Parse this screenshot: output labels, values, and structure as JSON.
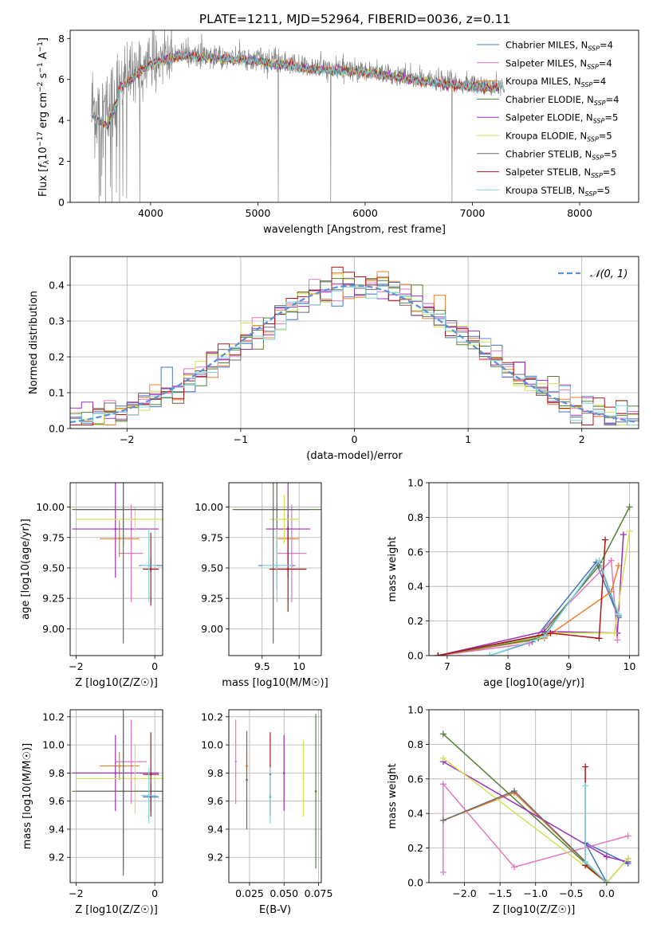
{
  "figure": {
    "title": "PLATE=1211, MJD=52964, FIBERID=0036, z=0.11"
  },
  "models": [
    {
      "label": "Chabrier MILES, N",
      "sub": "SSP",
      "suffix": "=4",
      "color": "#4472c4"
    },
    {
      "label": "Salpeter MILES, N",
      "sub": "SSP",
      "suffix": "=4",
      "color": "#e377c2"
    },
    {
      "label": "Kroupa MILES, N",
      "sub": "SSP",
      "suffix": "=4",
      "color": "#ed7d31"
    },
    {
      "label": "Chabrier ELODIE, N",
      "sub": "SSP",
      "suffix": "=4",
      "color": "#548235"
    },
    {
      "label": "Salpeter ELODIE, N",
      "sub": "SSP",
      "suffix": "=5",
      "color": "#9b30b8"
    },
    {
      "label": "Kroupa ELODIE, N",
      "sub": "SSP",
      "suffix": "=5",
      "color": "#d4e157"
    },
    {
      "label": "Chabrier STELIB, N",
      "sub": "SSP",
      "suffix": "=5",
      "color": "#6b6b6b"
    },
    {
      "label": "Salpeter STELIB, N",
      "sub": "SSP",
      "suffix": "=5",
      "color": "#b01818"
    },
    {
      "label": "Kroupa STELIB, N",
      "sub": "SSP",
      "suffix": "=5",
      "color": "#7fd6df"
    }
  ],
  "chart_data": [
    {
      "id": "spectrum",
      "type": "line",
      "xlabel": "wavelength [Angstrom, rest frame]",
      "ylabel_parts": [
        "Flux [",
        "f",
        "λ",
        "10",
        "−17",
        " erg cm",
        "−2",
        " s",
        "−1",
        " A",
        "−1",
        "]"
      ],
      "xlim": [
        3250,
        8550
      ],
      "ylim": [
        0,
        8.4
      ],
      "xticks": [
        4000,
        5000,
        6000,
        7000,
        8000
      ],
      "yticks": [
        0,
        2,
        4,
        6,
        8
      ],
      "continuum": [
        [
          3450,
          4.7
        ],
        [
          3600,
          4.3
        ],
        [
          3700,
          5.6
        ],
        [
          3850,
          6.3
        ],
        [
          4000,
          6.9
        ],
        [
          4300,
          7.25
        ],
        [
          4600,
          7.15
        ],
        [
          5000,
          7.0
        ],
        [
          5500,
          6.6
        ],
        [
          6000,
          6.45
        ],
        [
          6500,
          6.05
        ],
        [
          7000,
          5.75
        ],
        [
          7300,
          5.7
        ]
      ],
      "dips": [
        3520,
        3580,
        3640,
        3710,
        3900,
        5190,
        5680,
        6810,
        7420
      ]
    },
    {
      "id": "residuals",
      "type": "line",
      "xlabel": "(data-model)/error",
      "ylabel": "Normed distribution",
      "xlim": [
        -2.5,
        2.5
      ],
      "ylim": [
        0,
        0.48
      ],
      "xticks": [
        -2,
        -1,
        0,
        1,
        2
      ],
      "yticks": [
        0.0,
        0.1,
        0.2,
        0.3,
        0.4
      ],
      "grid": true,
      "legend": "N(0,1)",
      "gaussian_color": "#5b8fd6"
    },
    {
      "id": "age-vs-Z",
      "type": "scatter",
      "xlabel": "Z [log10(Z/Z☉)]",
      "ylabel": "age  [log10(age/yr)]",
      "xlim": [
        -2.15,
        0.2
      ],
      "ylim": [
        8.78,
        10.2
      ],
      "xticks": [
        -2,
        0
      ],
      "yticks": [
        9.0,
        9.25,
        9.5,
        9.75,
        10.0
      ],
      "grid": true
    },
    {
      "id": "age-vs-mass",
      "type": "scatter",
      "xlabel": "mass [log10(M/M☉)]",
      "ylabel": "",
      "xlim": [
        9.05,
        10.3
      ],
      "ylim": [
        8.78,
        10.2
      ],
      "xticks": [
        9.5,
        10.0
      ],
      "yticks": [
        9.0,
        9.25,
        9.5,
        9.75,
        10.0
      ],
      "grid": true
    },
    {
      "id": "weight-vs-age",
      "type": "line",
      "xlabel": "age  [log10(age/yr)]",
      "ylabel": "mass weight",
      "xlim": [
        6.7,
        10.15
      ],
      "ylim": [
        0,
        1.0
      ],
      "xticks": [
        7,
        8,
        9,
        10
      ],
      "yticks": [
        0.0,
        0.2,
        0.4,
        0.6,
        0.8,
        1.0
      ],
      "grid": true
    },
    {
      "id": "mass-vs-Z",
      "type": "scatter",
      "xlabel": "Z [log10(Z/Z☉)]",
      "ylabel": "mass [log10(M/M☉)]",
      "xlim": [
        -2.15,
        0.2
      ],
      "ylim": [
        9.02,
        10.25
      ],
      "xticks": [
        -2,
        0
      ],
      "yticks": [
        9.2,
        9.4,
        9.6,
        9.8,
        10.0,
        10.2
      ],
      "grid": true
    },
    {
      "id": "mass-vs-ebv",
      "type": "scatter",
      "xlabel": "E(B-V)",
      "ylabel": "",
      "xlim": [
        0.01,
        0.077
      ],
      "ylim": [
        9.02,
        10.25
      ],
      "xticks": [
        0.025,
        0.05,
        0.075
      ],
      "xticklabels": [
        "0.025",
        "0.050",
        "0.075"
      ],
      "yticks": [
        9.2,
        9.4,
        9.6,
        9.8,
        10.0,
        10.2
      ],
      "grid": true
    },
    {
      "id": "weight-vs-Z",
      "type": "line",
      "xlabel": "Z [log10(Z/Z☉)]",
      "ylabel": "mass weight",
      "xlim": [
        -2.5,
        0.45
      ],
      "ylim": [
        0,
        1.0
      ],
      "xticks": [
        -2.0,
        -1.5,
        -1.0,
        -0.5,
        0.0
      ],
      "xticklabels": [
        "−2.0",
        "−1.5",
        "−1.0",
        "−0.5",
        "0.0"
      ],
      "yticks": [
        0.0,
        0.2,
        0.4,
        0.6,
        0.8,
        1.0
      ],
      "grid": true
    }
  ],
  "points": {
    "age_Z": [
      {
        "m": 0,
        "z": -0.1,
        "age": 9.52,
        "zerr": 0.3,
        "aerr": 0.05
      },
      {
        "m": 1,
        "z": -0.6,
        "age": 9.62,
        "zerr": 0.3,
        "aerr": 0.4
      },
      {
        "m": 2,
        "z": -0.9,
        "age": 9.74,
        "zerr": 0.5,
        "aerr": 0.15
      },
      {
        "m": 3,
        "z": -0.8,
        "age": 9.98,
        "zerr": 1.3,
        "aerr": 0.3
      },
      {
        "m": 4,
        "z": -1.0,
        "age": 9.82,
        "zerr": 1.1,
        "aerr": 0.4
      },
      {
        "m": 5,
        "z": -0.5,
        "age": 9.9,
        "zerr": 1.5,
        "aerr": 0.1
      },
      {
        "m": 6,
        "z": -0.8,
        "age": 9.98,
        "zerr": 1.2,
        "aerr": 1.1
      },
      {
        "m": 7,
        "z": -0.1,
        "age": 9.49,
        "zerr": 0.2,
        "aerr": 0.3
      },
      {
        "m": 8,
        "z": -0.15,
        "age": 9.52,
        "zerr": 0.2,
        "aerr": 0.3
      }
    ],
    "age_mass": [
      {
        "m": 0,
        "mass": 9.7,
        "age": 9.52,
        "merr": 0.25,
        "aerr": 0.2
      },
      {
        "m": 1,
        "mass": 9.9,
        "age": 9.62,
        "merr": 0.2,
        "aerr": 0.4
      },
      {
        "m": 2,
        "mass": 9.85,
        "age": 9.74,
        "merr": 0.15,
        "aerr": 0.2
      },
      {
        "m": 3,
        "mass": 9.7,
        "age": 9.98,
        "merr": 0.6,
        "aerr": 0.3
      },
      {
        "m": 4,
        "mass": 9.85,
        "age": 9.82,
        "merr": 0.3,
        "aerr": 0.4
      },
      {
        "m": 5,
        "mass": 9.8,
        "age": 9.9,
        "merr": 0.2,
        "aerr": 0.2
      },
      {
        "m": 6,
        "mass": 9.65,
        "age": 9.98,
        "merr": 0.5,
        "aerr": 1.1
      },
      {
        "m": 7,
        "mass": 9.85,
        "age": 9.49,
        "merr": 0.25,
        "aerr": 0.35
      },
      {
        "m": 8,
        "mass": 9.7,
        "age": 9.52,
        "merr": 0.2,
        "aerr": 0.3
      }
    ],
    "mass_Z": [
      {
        "m": 0,
        "z": -0.1,
        "mass": 9.63,
        "zerr": 0.2,
        "merr": 0.1
      },
      {
        "m": 1,
        "z": -0.6,
        "mass": 9.88,
        "zerr": 0.4,
        "merr": 0.3
      },
      {
        "m": 2,
        "z": -0.9,
        "mass": 9.85,
        "zerr": 0.5,
        "merr": 0.1
      },
      {
        "m": 3,
        "z": -0.8,
        "mass": 9.67,
        "zerr": 1.3,
        "merr": 0.55
      },
      {
        "m": 4,
        "z": -1.0,
        "mass": 9.8,
        "zerr": 1.1,
        "merr": 0.27
      },
      {
        "m": 5,
        "z": -0.5,
        "mass": 9.76,
        "zerr": 1.5,
        "merr": 0.25
      },
      {
        "m": 6,
        "z": -0.8,
        "mass": 9.67,
        "zerr": 1.2,
        "merr": 0.6
      },
      {
        "m": 7,
        "z": -0.1,
        "mass": 9.79,
        "zerr": 0.2,
        "merr": 0.3
      },
      {
        "m": 8,
        "z": -0.15,
        "mass": 9.64,
        "zerr": 0.2,
        "merr": 0.2
      }
    ],
    "mass_ebv": [
      {
        "m": 0,
        "ebv": 0.04,
        "mass": 9.63,
        "merr": 0.13
      },
      {
        "m": 1,
        "ebv": 0.015,
        "mass": 9.88,
        "merr": 0.3
      },
      {
        "m": 2,
        "ebv": 0.023,
        "mass": 9.85,
        "merr": 0.1
      },
      {
        "m": 3,
        "ebv": 0.073,
        "mass": 9.67,
        "merr": 0.55
      },
      {
        "m": 4,
        "ebv": 0.05,
        "mass": 9.8,
        "merr": 0.27
      },
      {
        "m": 5,
        "ebv": 0.064,
        "mass": 9.76,
        "merr": 0.27
      },
      {
        "m": 6,
        "ebv": 0.023,
        "mass": 9.75,
        "merr": 0.35
      },
      {
        "m": 7,
        "ebv": 0.04,
        "mass": 9.79,
        "merr": 0.3
      },
      {
        "m": 8,
        "ebv": 0.04,
        "mass": 9.64,
        "merr": 0.2
      }
    ]
  },
  "weights_age": [
    {
      "m": 0,
      "pts": [
        [
          7.7,
          0.0
        ],
        [
          8.4,
          0.08
        ],
        [
          9.45,
          0.54
        ],
        [
          9.82,
          0.22
        ]
      ]
    },
    {
      "m": 1,
      "pts": [
        [
          6.85,
          0.0
        ],
        [
          8.35,
          0.07
        ],
        [
          9.7,
          0.55
        ],
        [
          9.8,
          0.09
        ]
      ]
    },
    {
      "m": 2,
      "pts": [
        [
          6.85,
          0.0
        ],
        [
          8.6,
          0.1
        ],
        [
          9.7,
          0.37
        ],
        [
          9.82,
          0.52
        ]
      ]
    },
    {
      "m": 3,
      "pts": [
        [
          6.85,
          0.0
        ],
        [
          8.5,
          0.1
        ],
        [
          9.5,
          0.52
        ],
        [
          10.0,
          0.86
        ]
      ]
    },
    {
      "m": 4,
      "pts": [
        [
          6.85,
          0.0
        ],
        [
          8.6,
          0.14
        ],
        [
          9.8,
          0.13
        ],
        [
          9.9,
          0.7
        ]
      ]
    },
    {
      "m": 5,
      "pts": [
        [
          6.85,
          0.0
        ],
        [
          8.8,
          0.13
        ],
        [
          9.75,
          0.13
        ],
        [
          10.0,
          0.72
        ]
      ]
    },
    {
      "m": 6,
      "pts": [
        [
          6.85,
          0.0
        ],
        [
          8.6,
          0.12
        ],
        [
          9.5,
          0.54
        ],
        [
          9.82,
          0.23
        ]
      ]
    },
    {
      "m": 7,
      "pts": [
        [
          6.85,
          0.0
        ],
        [
          8.7,
          0.13
        ],
        [
          9.5,
          0.1
        ],
        [
          9.6,
          0.67
        ]
      ]
    },
    {
      "m": 8,
      "pts": [
        [
          7.7,
          0.0
        ],
        [
          8.6,
          0.11
        ],
        [
          9.5,
          0.55
        ],
        [
          9.82,
          0.24
        ]
      ]
    }
  ],
  "weights_Z": [
    {
      "m": 0,
      "pts": [
        [
          0.0,
          0.0
        ],
        [
          -0.3,
          0.23
        ],
        [
          0.3,
          0.11
        ]
      ]
    },
    {
      "m": 1,
      "pts": [
        [
          -2.3,
          0.06
        ],
        [
          -2.3,
          0.57
        ],
        [
          -1.3,
          0.09
        ],
        [
          0.3,
          0.27
        ]
      ]
    },
    {
      "m": 2,
      "pts": [
        [
          -2.3,
          0.36
        ],
        [
          -1.3,
          0.52
        ],
        [
          0.0,
          0.0
        ]
      ]
    },
    {
      "m": 3,
      "pts": [
        [
          -2.3,
          0.86
        ],
        [
          0.0,
          0.0
        ],
        [
          0.3,
          0.14
        ]
      ]
    },
    {
      "m": 4,
      "pts": [
        [
          -2.3,
          0.7
        ],
        [
          0.0,
          0.15
        ],
        [
          0.3,
          0.12
        ]
      ]
    },
    {
      "m": 5,
      "pts": [
        [
          -2.3,
          0.72
        ],
        [
          0.0,
          0.0
        ],
        [
          0.3,
          0.14
        ]
      ]
    },
    {
      "m": 6,
      "pts": [
        [
          -2.3,
          0.36
        ],
        [
          -1.3,
          0.53
        ],
        [
          0.0,
          0.0
        ]
      ]
    },
    {
      "m": 7,
      "pts": [
        [
          -0.3,
          0.67
        ],
        [
          -0.3,
          0.1
        ],
        [
          0.0,
          0.0
        ]
      ]
    },
    {
      "m": 8,
      "pts": [
        [
          -0.3,
          0.56
        ],
        [
          -0.3,
          0.12
        ],
        [
          0.0,
          0.0
        ]
      ]
    }
  ]
}
